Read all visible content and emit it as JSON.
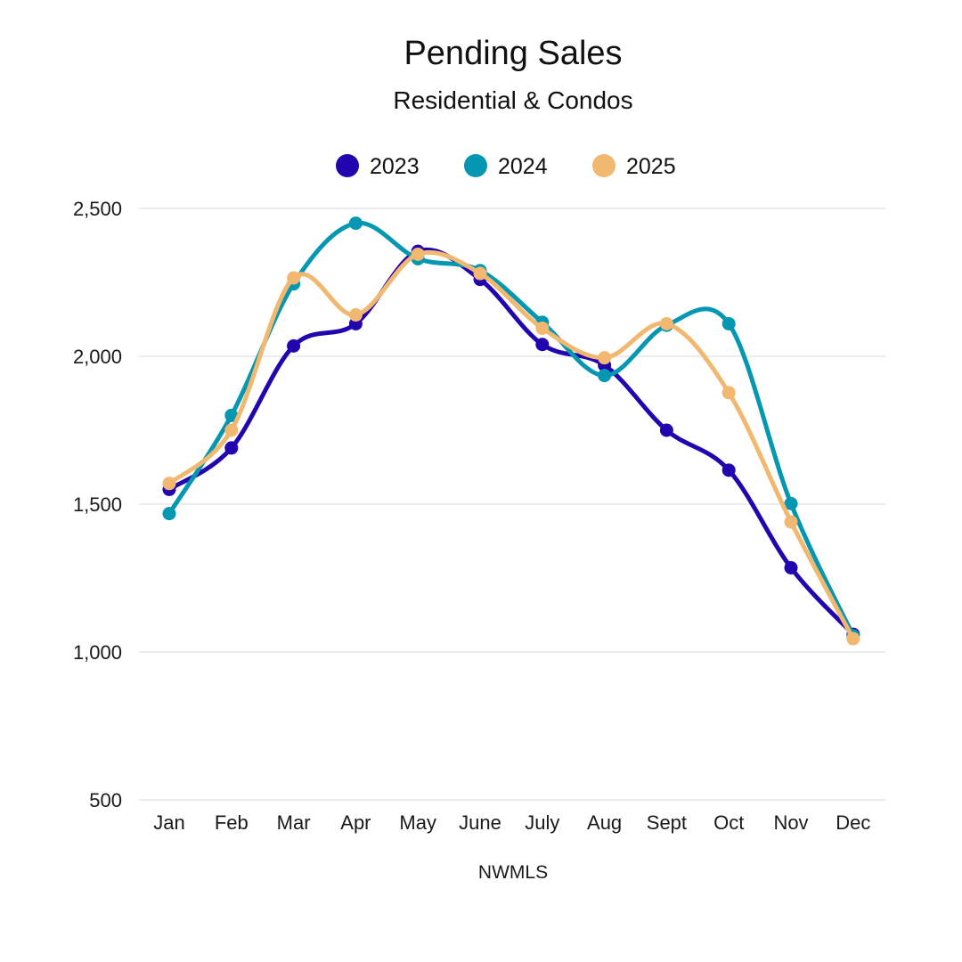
{
  "chart_data": {
    "type": "line",
    "title": "Pending Sales",
    "subtitle": "Residential & Condos",
    "source": "NWMLS",
    "categories": [
      "Jan",
      "Feb",
      "Mar",
      "Apr",
      "May",
      "June",
      "July",
      "Aug",
      "Sept",
      "Oct",
      "Nov",
      "Dec"
    ],
    "series": [
      {
        "name": "2023",
        "color": "#2305b0",
        "values": [
          1550,
          1690,
          2035,
          2110,
          2355,
          2260,
          2040,
          1970,
          1750,
          1615,
          1285,
          1060
        ]
      },
      {
        "name": "2024",
        "color": "#0497b1",
        "values": [
          1468,
          1800,
          2245,
          2450,
          2330,
          2290,
          2115,
          1935,
          2105,
          2110,
          1502,
          1055
        ]
      },
      {
        "name": "2025",
        "color": "#f2b86f",
        "values": [
          1570,
          1750,
          2265,
          2140,
          2345,
          2280,
          2095,
          1995,
          2110,
          1877,
          1440,
          1045
        ]
      }
    ],
    "ylim": [
      500,
      2500
    ],
    "yticks": [
      500,
      1000,
      1500,
      2000,
      2500
    ],
    "ytick_labels": [
      "500",
      "1,000",
      "1,500",
      "2,000",
      "2,500"
    ],
    "xlabel": "NWMLS",
    "ylabel": "",
    "grid": true,
    "legend_position": "top-center"
  }
}
